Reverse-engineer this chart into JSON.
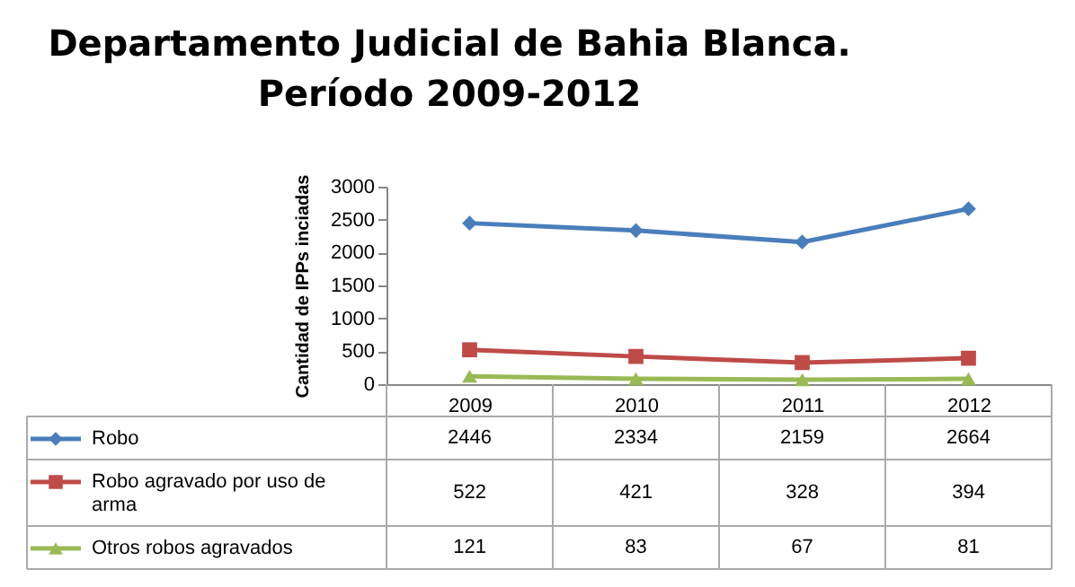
{
  "chart_data": {
    "type": "line",
    "title": [
      "Departamento Judicial de Bahia Blanca.",
      "Período  2009-2012"
    ],
    "ylabel": "Cantidad de IPPs inciadas",
    "categories": [
      "2009",
      "2010",
      "2011",
      "2012"
    ],
    "series": [
      {
        "name": "Robo",
        "color": "#4a7ebb",
        "marker": "diamond",
        "values": [
          2446,
          2334,
          2159,
          2664
        ]
      },
      {
        "name": "Robo agravado por uso de arma",
        "color": "#be4b48",
        "marker": "square",
        "values": [
          522,
          421,
          328,
          394
        ]
      },
      {
        "name": "Otros robos agravados",
        "color": "#98b954",
        "marker": "triangle",
        "values": [
          121,
          83,
          67,
          81
        ]
      }
    ],
    "ylim": [
      0,
      3000
    ],
    "yticks": [
      0,
      500,
      1000,
      1500,
      2000,
      2500,
      3000
    ],
    "data_labels": true,
    "legend": "bottom"
  }
}
